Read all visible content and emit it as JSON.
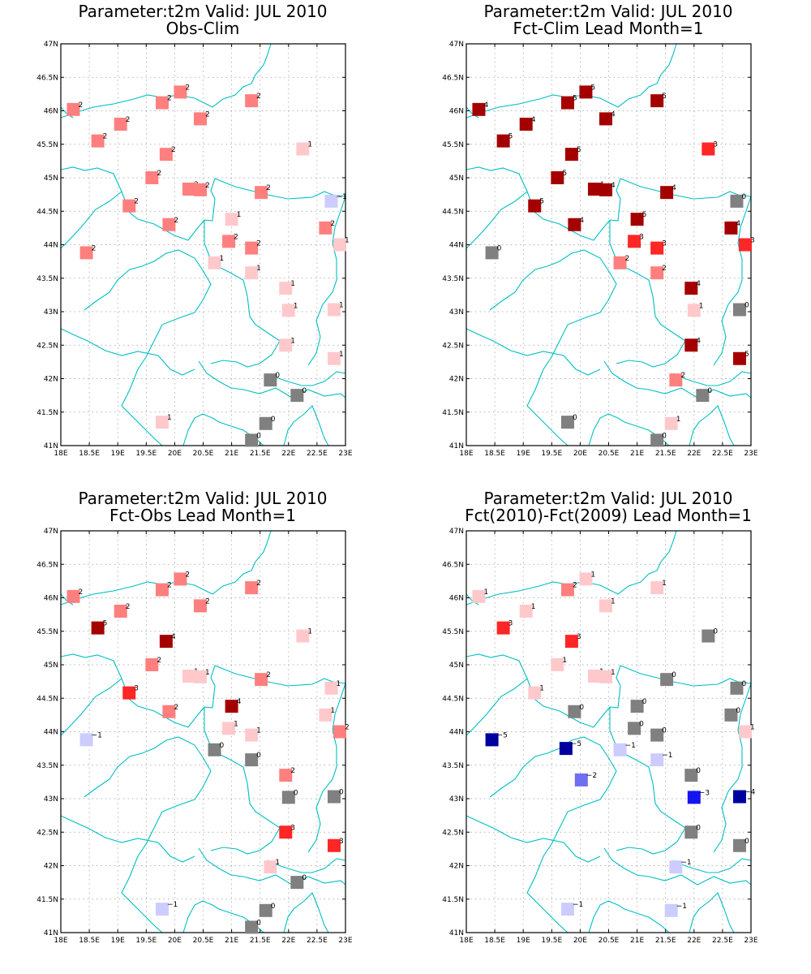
{
  "colors": {
    "land_line": "#00bfc2",
    "grid": "#9a9a9a",
    "zero": "#808080",
    "pos1": "#ffc9cc",
    "pos2": "#ff7f7f",
    "pos3": "#ff2626",
    "pos4": "#a50000",
    "pos5": "#a50000",
    "neg1": "#cccdfe",
    "neg2": "#6f6ff0",
    "neg3": "#1515f0",
    "neg4": "#00009e",
    "neg5": "#00009e"
  },
  "axes": {
    "x_ticks": [
      "18E",
      "18.5E",
      "19E",
      "19.5E",
      "20E",
      "20.5E",
      "21E",
      "21.5E",
      "22E",
      "22.5E",
      "23E"
    ],
    "y_ticks": [
      "41N",
      "41.5N",
      "42N",
      "42.5N",
      "43N",
      "43.5N",
      "44N",
      "44.5N",
      "45N",
      "45.5N",
      "46N",
      "46.5N",
      "47N"
    ],
    "lon_range": [
      18,
      23
    ],
    "lat_range": [
      41,
      47
    ]
  },
  "stations": [
    [
      18.22,
      46.02
    ],
    [
      18.65,
      45.55
    ],
    [
      19.05,
      45.8
    ],
    [
      19.78,
      46.12
    ],
    [
      20.1,
      46.28
    ],
    [
      20.45,
      45.88
    ],
    [
      21.35,
      46.15
    ],
    [
      19.85,
      45.35
    ],
    [
      19.6,
      45.0
    ],
    [
      20.25,
      44.83
    ],
    [
      20.45,
      44.82
    ],
    [
      21.52,
      44.78
    ],
    [
      22.25,
      45.43
    ],
    [
      19.2,
      44.58
    ],
    [
      19.9,
      44.3
    ],
    [
      21.0,
      44.38
    ],
    [
      20.95,
      44.05
    ],
    [
      21.35,
      43.95
    ],
    [
      22.75,
      44.65
    ],
    [
      22.65,
      44.25
    ],
    [
      22.9,
      44.0
    ],
    [
      18.45,
      43.88
    ],
    [
      20.7,
      43.73
    ],
    [
      21.35,
      43.58
    ],
    [
      21.95,
      43.35
    ],
    [
      22.0,
      43.02
    ],
    [
      22.8,
      43.03
    ],
    [
      21.95,
      42.5
    ],
    [
      22.8,
      42.3
    ],
    [
      21.68,
      41.98
    ],
    [
      22.15,
      41.75
    ],
    [
      19.78,
      41.35
    ],
    [
      21.6,
      41.33
    ],
    [
      21.35,
      41.08
    ]
  ],
  "panels": [
    {
      "title_line1": "Parameter:t2m Valid: JUL 2010",
      "title_line2": "Obs-Clim",
      "values": [
        2,
        2,
        2,
        2,
        2,
        2,
        2,
        2,
        2,
        2,
        2,
        2,
        1,
        2,
        2,
        1,
        2,
        2,
        -1,
        2,
        1,
        2,
        1,
        1,
        1,
        1,
        1,
        1,
        1,
        0,
        0,
        1,
        0,
        0
      ]
    },
    {
      "title_line1": "Parameter:t2m Valid: JUL 2010",
      "title_line2": "Fct-Clim Lead Month=1",
      "values": [
        4,
        5,
        4,
        5,
        5,
        4,
        5,
        5,
        5,
        4,
        4,
        4,
        3,
        5,
        4,
        5,
        3,
        3,
        0,
        4,
        3,
        0,
        2,
        2,
        4,
        1,
        0,
        4,
        5,
        2,
        0,
        0,
        1,
        0
      ]
    },
    {
      "title_line1": "Parameter:t2m Valid: JUL 2010",
      "title_line2": "Fct-Obs Lead Month=1",
      "values": [
        2,
        5,
        2,
        2,
        2,
        2,
        2,
        4,
        2,
        1,
        1,
        2,
        1,
        3,
        2,
        4,
        1,
        1,
        1,
        1,
        2,
        -1,
        0,
        0,
        2,
        0,
        0,
        3,
        3,
        1,
        0,
        -1,
        0,
        0
      ]
    },
    {
      "title_line1": "Parameter:t2m Valid: JUL 2010",
      "title_line2": "Fct(2010)-Fct(2009) Lead Month=1",
      "values": [
        1,
        3,
        1,
        2,
        1,
        1,
        1,
        3,
        1,
        1,
        1,
        0,
        0,
        1,
        0,
        0,
        0,
        0,
        0,
        0,
        1,
        -5,
        -1,
        -1,
        0,
        -3,
        -4,
        0,
        0,
        -1,
        null,
        -1,
        -1,
        null
      ],
      "extra_points": [
        {
          "lon": 19.75,
          "lat": 43.75,
          "value": -5
        },
        {
          "lon": 20.02,
          "lat": 43.28,
          "value": -2
        }
      ]
    }
  ]
}
